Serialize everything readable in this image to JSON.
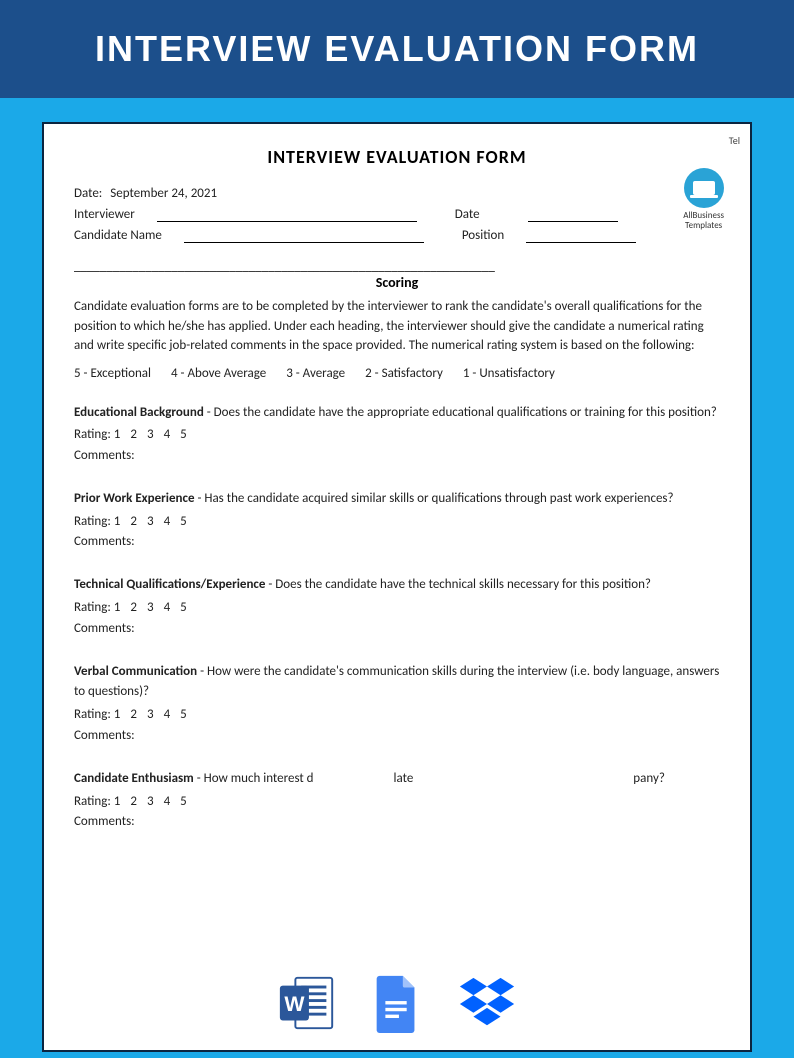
{
  "banner": {
    "title": "INTERVIEW EVALUATION FORM"
  },
  "page": {
    "corner_text": "Tel",
    "title": "INTERVIEW EVALUATION FORM",
    "logo": {
      "line1": "AllBusiness",
      "line2": "Templates"
    },
    "fields": {
      "date_label": "Date:",
      "date_value": "September 24, 2021",
      "interviewer_label": "Interviewer",
      "date2_label": "Date",
      "candidate_label": "Candidate Name",
      "position_label": "Position"
    },
    "divider": "_________________________________________________________________",
    "scoring_heading": "Scoring",
    "scoring_intro": "Candidate evaluation forms are to be completed by the interviewer to rank the candidate's overall qualifications for the position to which he/she has applied. Under each heading, the interviewer should give the candidate a numerical rating and write specific job-related comments in the space provided. The numerical rating system is based on the following:",
    "scale": {
      "s5": "5 - Exceptional",
      "s4": "4 - Above Average",
      "s3": "3 - Average",
      "s2": "2 - Satisfactory",
      "s1": "1 - Unsatisfactory"
    },
    "common": {
      "rating_label": "Rating:",
      "n1": "1",
      "n2": "2",
      "n3": "3",
      "n4": "4",
      "n5": "5",
      "comments_label": "Comments:"
    },
    "sections": [
      {
        "title": "Educational Background",
        "question": " - Does the candidate have the appropriate educational qualifications or training for this position?"
      },
      {
        "title": "Prior Work Experience",
        "question": " - Has the candidate acquired similar skills or qualifications through past work experiences?"
      },
      {
        "title": "Technical Qualifications/Experience",
        "question": " - Does the candidate have the technical skills necessary for this position?"
      },
      {
        "title": "Verbal Communication",
        "question": " - How were the candidate's communication skills during the interview (i.e. body language, answers to questions)?"
      },
      {
        "title": "Candidate Enthusiasm",
        "question_part1": " - How much interest d",
        "question_part2": "late",
        "question_part3": "pany?"
      }
    ]
  },
  "style": {
    "outer_bg": "#1ba9e8",
    "banner_bg": "#1c4f8b",
    "banner_text_color": "#ffffff",
    "page_bg": "#ffffff",
    "page_border": "#0b2540",
    "text_color": "#222222",
    "word_color": "#2b579a",
    "gdocs_color": "#4285f4",
    "dropbox_color": "#0061ff"
  }
}
